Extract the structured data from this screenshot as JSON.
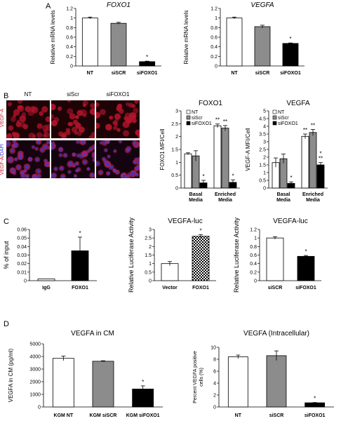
{
  "panel_letters": [
    "A",
    "B",
    "C",
    "D"
  ],
  "micrograph": {
    "columns": [
      "NT",
      "siScr",
      "siFOXO1"
    ],
    "row1_label": "VEGF-A",
    "row2_label_red": "VEGF-A/",
    "row2_label_blue": "DAPI"
  },
  "colors": {
    "white": "#ffffff",
    "gray": "#8c8c8c",
    "black": "#000000",
    "red_stain": "#c0162c",
    "blue_stain": "#3b3bd6"
  },
  "chart_data": [
    {
      "id": "A1",
      "panel": "A",
      "type": "bar",
      "title": "FOXO1",
      "title_italic": true,
      "ylabel": "Relative mRNA levels",
      "ylim": [
        0,
        1.2
      ],
      "yticks": [
        "0",
        "0.2",
        "0.4",
        "0.6",
        "0.8",
        "1",
        "1.2"
      ],
      "categories": [
        "NT",
        "siSCR",
        "siFOXO1"
      ],
      "values": [
        1.0,
        0.89,
        0.09
      ],
      "errors": [
        0.02,
        0.02,
        0.01
      ],
      "fills": [
        "white",
        "gray",
        "black"
      ],
      "stars": [
        "",
        "",
        "*"
      ]
    },
    {
      "id": "A2",
      "panel": "A",
      "type": "bar",
      "title": "VEGFA",
      "title_italic": true,
      "ylabel": "Relative mRNA levels",
      "ylim": [
        0,
        1.2
      ],
      "yticks": [
        "0",
        "0.2",
        "0.4",
        "0.6",
        "0.8",
        "1",
        "1.2"
      ],
      "categories": [
        "NT",
        "siSCR",
        "siFOXO1"
      ],
      "values": [
        1.0,
        0.82,
        0.47
      ],
      "errors": [
        0.02,
        0.03,
        0.01
      ],
      "fills": [
        "white",
        "gray",
        "black"
      ],
      "stars": [
        "",
        "",
        "*"
      ]
    },
    {
      "id": "B1",
      "panel": "B",
      "type": "bar",
      "title": "FOXO1",
      "ylabel": "FOXO1 MFI/Cell",
      "ylim": [
        0,
        3
      ],
      "yticks": [
        "0",
        "0.5",
        "1",
        "1.5",
        "2",
        "2.5",
        "3"
      ],
      "groups": [
        "Basal Media",
        "Enriched Media"
      ],
      "series": [
        {
          "name": "NT",
          "fill": "white",
          "values": [
            1.33,
            2.42
          ],
          "errors": [
            0.04,
            0.07
          ],
          "stars": [
            "",
            "**"
          ]
        },
        {
          "name": "siScr",
          "fill": "gray",
          "values": [
            1.25,
            2.33
          ],
          "errors": [
            0.2,
            0.1
          ],
          "stars": [
            "",
            "**"
          ]
        },
        {
          "name": "siFOXO1",
          "fill": "black",
          "values": [
            0.2,
            0.22
          ],
          "errors": [
            0.1,
            0.1
          ],
          "stars": [
            "*",
            "*"
          ]
        }
      ]
    },
    {
      "id": "B2",
      "panel": "B",
      "type": "bar",
      "title": "VEGFA",
      "ylabel": "VEGF-A MFI/Cell",
      "ylim": [
        0,
        5
      ],
      "yticks": [
        "0",
        "0.5",
        "1",
        "1.5",
        "2",
        "2.5",
        "3",
        "3.5",
        "4",
        "4.5",
        "5"
      ],
      "groups": [
        "Basal Media",
        "Enriched Media"
      ],
      "series": [
        {
          "name": "NT",
          "fill": "white",
          "values": [
            1.65,
            3.35
          ],
          "errors": [
            0.3,
            0.15
          ],
          "stars": [
            "",
            "**"
          ]
        },
        {
          "name": "siScr",
          "fill": "gray",
          "values": [
            1.9,
            3.6
          ],
          "errors": [
            0.3,
            0.2
          ],
          "stars": [
            "",
            "**"
          ]
        },
        {
          "name": "siFOXO1",
          "fill": "black",
          "values": [
            0.3,
            1.5
          ],
          "errors": [
            0.1,
            0.15
          ],
          "stars": [
            "*",
            "*\n**"
          ]
        }
      ]
    },
    {
      "id": "C1",
      "panel": "C",
      "type": "bar",
      "title": "",
      "ylabel": "% of input",
      "ylim": [
        0,
        0.06
      ],
      "yticks": [
        "0",
        "0.01",
        "0.02",
        "0.03",
        "0.04",
        "0.05",
        "0.06"
      ],
      "categories": [
        "IgG",
        "FOXO1"
      ],
      "values": [
        0.002,
        0.035
      ],
      "errors": [
        0,
        0.016
      ],
      "fills": [
        "white",
        "black"
      ],
      "stars": [
        "",
        "*"
      ]
    },
    {
      "id": "C2",
      "panel": "C",
      "type": "bar",
      "title": "VEGFA-luc",
      "ylabel": "Relative Luciferase Activity",
      "ylim": [
        0,
        3
      ],
      "yticks": [
        "0",
        "0.5",
        "1",
        "1.5",
        "2",
        "2.5",
        "3"
      ],
      "categories": [
        "Vector",
        "FOXO1"
      ],
      "values": [
        1.0,
        2.6
      ],
      "errors": [
        0.12,
        0.1
      ],
      "fills": [
        "white",
        "check"
      ],
      "stars": [
        "",
        "*"
      ]
    },
    {
      "id": "C3",
      "panel": "C",
      "type": "bar",
      "title": "VEGFA-luc",
      "ylabel": "Relative Luciferase Activity",
      "ylim": [
        0,
        1.2
      ],
      "yticks": [
        "0",
        "0.2",
        "0.4",
        "0.6",
        "0.8",
        "1",
        "1.2"
      ],
      "categories": [
        "siSCR",
        "siFOXO1"
      ],
      "values": [
        1.0,
        0.57
      ],
      "errors": [
        0.03,
        0.02
      ],
      "fills": [
        "white",
        "black"
      ],
      "stars": [
        "",
        "*"
      ]
    },
    {
      "id": "D1",
      "panel": "D",
      "type": "bar",
      "title": "VEGFA in CM",
      "ylabel": "VEGFA in CM (pg/ml)",
      "ylim": [
        0,
        5000
      ],
      "yticks": [
        "0",
        "1000",
        "2000",
        "3000",
        "4000",
        "5000"
      ],
      "categories": [
        "KGM NT",
        "KGM siSCR",
        "KGM siFOXO1"
      ],
      "values": [
        3850,
        3620,
        1420
      ],
      "errors": [
        180,
        40,
        250
      ],
      "fills": [
        "white",
        "gray",
        "black"
      ],
      "stars": [
        "",
        "",
        "*"
      ]
    },
    {
      "id": "D2",
      "panel": "D",
      "type": "bar",
      "title": "VEGFA (Intracellular)",
      "ylabel": "Percent VEGFA positive cells (%)",
      "ylim": [
        0,
        10
      ],
      "yticks": [
        "0",
        "2",
        "4",
        "6",
        "8",
        "10"
      ],
      "categories": [
        "NT",
        "siSCR",
        "siFOXO1"
      ],
      "values": [
        8.4,
        8.6,
        0.7
      ],
      "errors": [
        0.3,
        0.8,
        0.05
      ],
      "fills": [
        "white",
        "gray",
        "black"
      ],
      "stars": [
        "",
        "",
        "*"
      ]
    }
  ]
}
